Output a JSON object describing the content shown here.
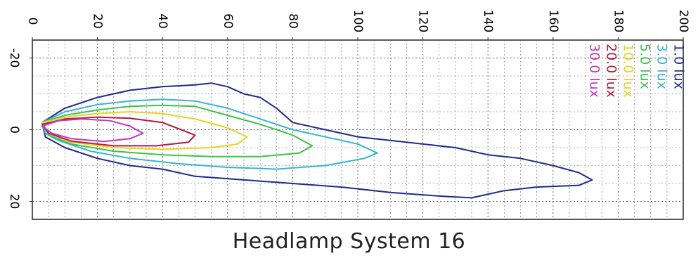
{
  "caption": "Headlamp System 16",
  "chart_data": {
    "type": "line",
    "title": "",
    "xlabel": "",
    "ylabel": "",
    "xlim": [
      0,
      200
    ],
    "ylim": [
      -25,
      25
    ],
    "x_ticks": [
      "0",
      "20",
      "40",
      "60",
      "80",
      "100",
      "120",
      "140",
      "160",
      "180",
      "200"
    ],
    "y_ticks": [
      "-20",
      "0",
      "20"
    ],
    "grid": true,
    "legend_position": "top-right",
    "series": [
      {
        "name": "1.0 lux",
        "color": "#1f2a8c",
        "points": [
          [
            3,
            -2
          ],
          [
            10,
            -6
          ],
          [
            20,
            -9
          ],
          [
            30,
            -11
          ],
          [
            40,
            -12
          ],
          [
            50,
            -12.5
          ],
          [
            55,
            -13
          ],
          [
            60,
            -12
          ],
          [
            65,
            -10
          ],
          [
            70,
            -9
          ],
          [
            75,
            -6
          ],
          [
            80,
            -2
          ],
          [
            90,
            0
          ],
          [
            100,
            2
          ],
          [
            110,
            3
          ],
          [
            120,
            4
          ],
          [
            130,
            5
          ],
          [
            140,
            7
          ],
          [
            150,
            8
          ],
          [
            160,
            10
          ],
          [
            168,
            12
          ],
          [
            172,
            14
          ],
          [
            168,
            15.5
          ],
          [
            155,
            16
          ],
          [
            145,
            17
          ],
          [
            135,
            19
          ],
          [
            125,
            18.5
          ],
          [
            110,
            17.5
          ],
          [
            95,
            16
          ],
          [
            80,
            15
          ],
          [
            65,
            14
          ],
          [
            50,
            13
          ],
          [
            40,
            11
          ],
          [
            30,
            10
          ],
          [
            20,
            8
          ],
          [
            10,
            5
          ],
          [
            4,
            2
          ],
          [
            3,
            -2
          ]
        ]
      },
      {
        "name": "3.0 lux",
        "color": "#35b6cf",
        "points": [
          [
            3,
            -2
          ],
          [
            10,
            -5
          ],
          [
            20,
            -7
          ],
          [
            30,
            -8
          ],
          [
            40,
            -8.5
          ],
          [
            50,
            -8
          ],
          [
            60,
            -6
          ],
          [
            70,
            -3
          ],
          [
            80,
            0
          ],
          [
            90,
            2
          ],
          [
            100,
            4
          ],
          [
            106,
            6.5
          ],
          [
            102,
            8
          ],
          [
            90,
            10
          ],
          [
            75,
            11
          ],
          [
            60,
            10.5
          ],
          [
            45,
            9.5
          ],
          [
            30,
            8
          ],
          [
            18,
            6
          ],
          [
            8,
            3
          ],
          [
            4,
            1
          ],
          [
            3,
            -2
          ]
        ]
      },
      {
        "name": "5.0 lux",
        "color": "#3cc24a",
        "points": [
          [
            3,
            -2
          ],
          [
            10,
            -4
          ],
          [
            20,
            -5.5
          ],
          [
            30,
            -6.5
          ],
          [
            40,
            -6.8
          ],
          [
            50,
            -6.5
          ],
          [
            60,
            -4
          ],
          [
            70,
            -1.5
          ],
          [
            80,
            1.5
          ],
          [
            86,
            4.5
          ],
          [
            82,
            6.5
          ],
          [
            70,
            7.5
          ],
          [
            55,
            7.5
          ],
          [
            40,
            7
          ],
          [
            25,
            6
          ],
          [
            12,
            4
          ],
          [
            5,
            1.5
          ],
          [
            3,
            -2
          ]
        ]
      },
      {
        "name": "10.0 lux",
        "color": "#e6d422",
        "points": [
          [
            3,
            -2
          ],
          [
            10,
            -3.5
          ],
          [
            20,
            -4.5
          ],
          [
            30,
            -5
          ],
          [
            40,
            -4.5
          ],
          [
            50,
            -3
          ],
          [
            60,
            -0.5
          ],
          [
            66,
            2
          ],
          [
            63,
            4
          ],
          [
            55,
            5
          ],
          [
            40,
            5.5
          ],
          [
            25,
            5
          ],
          [
            12,
            3.5
          ],
          [
            5,
            1
          ],
          [
            3,
            -2
          ]
        ]
      },
      {
        "name": "20.0 lux",
        "color": "#b31b3a",
        "points": [
          [
            3,
            -1.5
          ],
          [
            10,
            -3
          ],
          [
            20,
            -3.5
          ],
          [
            30,
            -3.2
          ],
          [
            40,
            -2
          ],
          [
            50,
            1.5
          ],
          [
            48,
            3.5
          ],
          [
            38,
            4.5
          ],
          [
            25,
            4.5
          ],
          [
            12,
            3.2
          ],
          [
            5,
            1
          ],
          [
            3,
            -1.5
          ]
        ]
      },
      {
        "name": "30.0 lux",
        "color": "#c23ab8",
        "points": [
          [
            3,
            -1
          ],
          [
            8,
            -2.5
          ],
          [
            15,
            -3
          ],
          [
            24,
            -2.5
          ],
          [
            30,
            -1
          ],
          [
            34,
            1
          ],
          [
            30,
            2.5
          ],
          [
            22,
            3.3
          ],
          [
            12,
            2.5
          ],
          [
            6,
            1
          ],
          [
            3,
            -1
          ]
        ]
      }
    ]
  }
}
